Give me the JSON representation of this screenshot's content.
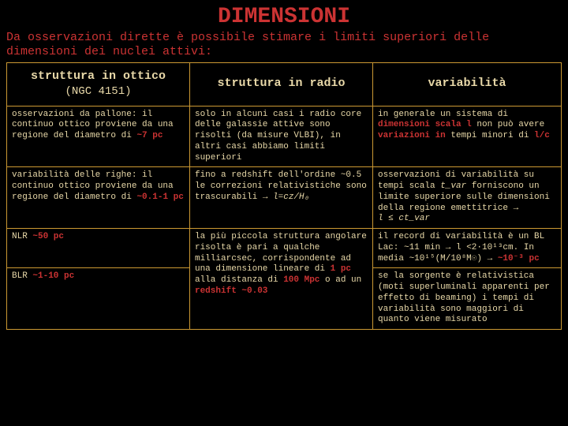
{
  "title": "DIMENSIONI",
  "subtitle": "Da osservazioni dirette è possibile stimare i limiti superiori delle dimensioni dei nuclei attivi:",
  "headers": {
    "col1_main": "struttura in ottico",
    "col1_sub": "(NGC 4151)",
    "col2": "struttura in radio",
    "col3": "variabilità"
  },
  "rows": {
    "r1": {
      "c1_a": "osservazioni da pallone: il continuo ottico proviene da una regione del diametro di ",
      "c1_b": "~7 pc",
      "c2": "solo in alcuni casi i radio core delle galassie attive sono risolti (da misure VLBI), in altri casi abbiamo limiti superiori",
      "c3_a": "in generale un sistema di ",
      "c3_b": "dimensioni scala l",
      "c3_c": " non può avere ",
      "c3_d": "variazioni in",
      "c3_e": " tempi minori di ",
      "c3_f": "l/c"
    },
    "r2": {
      "c1_a": "variabilità delle righe: il continuo ottico proviene da una regione del diametro di ",
      "c1_b": "~0.1-1 pc",
      "c2_a": "fino a redshift dell'ordine ~0.5 le correzioni relativistiche sono trascurabili ",
      "c2_arrow": "→",
      "c2_b": " l=cz/H₀",
      "c3_a": "osservazioni di variabilità su tempi scala ",
      "c3_b": "t_var",
      "c3_c": " forniscono un limite superiore sulle dimensioni della regione emettitrice ",
      "c3_arrow": "→",
      "c3_d": "l ≤ ct_var"
    },
    "r3": {
      "c1_a": "NLR ",
      "c1_b": "~50 pc",
      "c2_a": "la più piccola struttura angolare risolta è pari a qualche milliarcsec, corrispondente ad una dimensione lineare di ",
      "c2_b": "1 pc",
      "c2_c": " alla distanza di ",
      "c2_d": "100 Mpc",
      "c2_e": " o ad un ",
      "c2_f": "redshift ~0.03",
      "c3_a": "il record di variabilità è un BL Lac: ~11 min ",
      "c3_arrow": "→",
      "c3_b": " l <2·10¹³cm. In media ~10¹⁵(M/10⁸M☉) ",
      "c3_arrow2": "→",
      "c3_c": " ~10⁻³ pc"
    },
    "r4": {
      "c1_a": "BLR ",
      "c1_b": "~1-10 pc",
      "c3": "se la sorgente è relativistica (moti superluminali apparenti per effetto di beaming) i tempi di variabilità sono maggiori di quanto viene misurato"
    }
  },
  "colors": {
    "bg": "#000000",
    "accent": "#cc3333",
    "border": "#cc9933",
    "text": "#e8d8a8"
  }
}
